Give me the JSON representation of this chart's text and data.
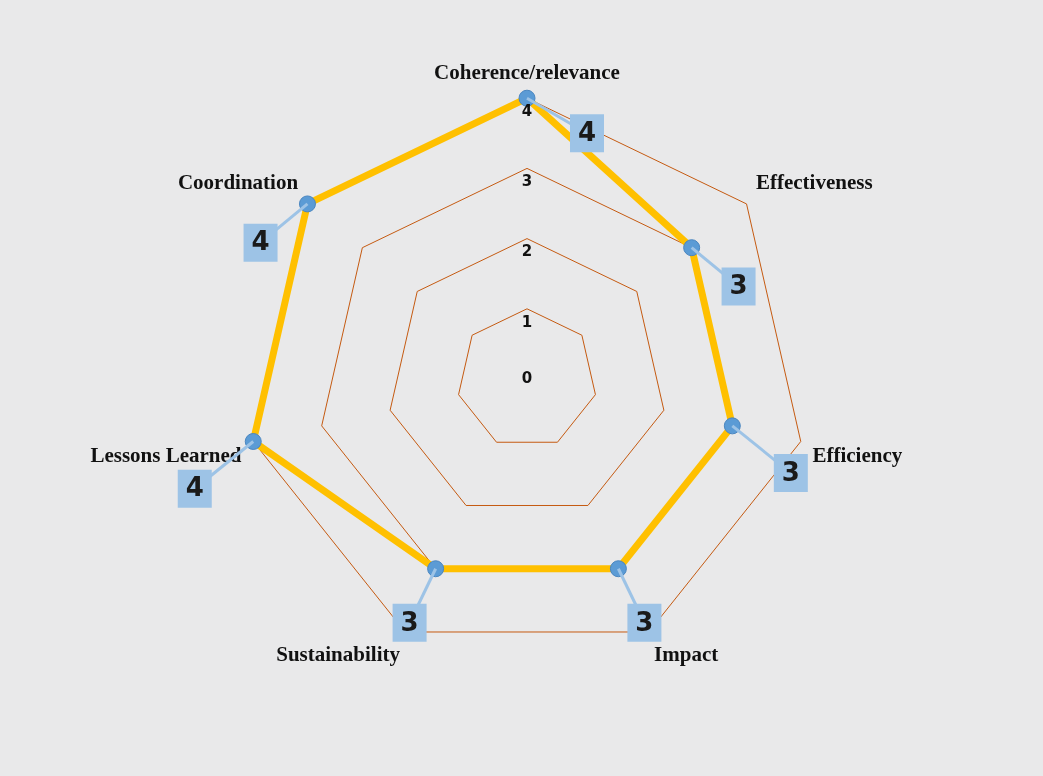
{
  "chart_data": {
    "type": "radar",
    "categories": [
      "Coherence/relevance",
      "Effectiveness",
      "Efficiency",
      "Impact",
      "Sustainability",
      "Lessons Learned",
      "Coordination"
    ],
    "series": [
      {
        "color": "#ffc000",
        "values": [
          4,
          3,
          3,
          3,
          3,
          4,
          4
        ]
      }
    ],
    "ylim": [
      0,
      4
    ],
    "yticks": [
      0,
      1,
      2,
      3,
      4
    ],
    "grid": true,
    "marker": "circle",
    "data_labels": true,
    "legend": false
  }
}
